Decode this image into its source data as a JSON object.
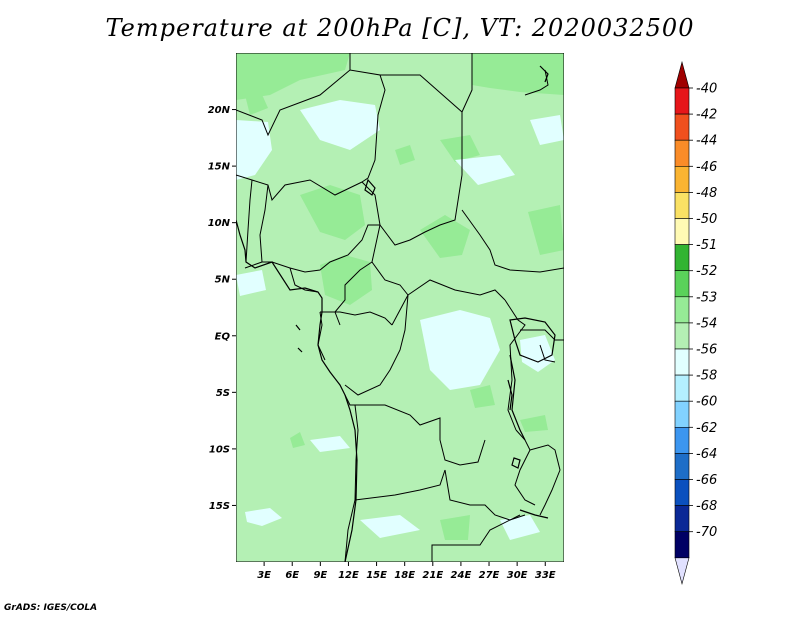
{
  "title": "Temperature at 200hPa [C], VT: 2020032500",
  "credit": "GrADS: IGES/COLA",
  "map": {
    "lat_ticks": [
      "20N",
      "15N",
      "10N",
      "5N",
      "EQ",
      "5S",
      "10S",
      "15S"
    ],
    "lon_ticks": [
      "3E",
      "6E",
      "9E",
      "12E",
      "15E",
      "18E",
      "21E",
      "24E",
      "27E",
      "30E",
      "33E"
    ],
    "lon_range": [
      0,
      35
    ],
    "lat_range": [
      -20,
      25
    ],
    "background_level": "-53"
  },
  "colorbar": {
    "levels": [
      "-40",
      "-42",
      "-44",
      "-46",
      "-48",
      "-50",
      "-51",
      "-52",
      "-53",
      "-54",
      "-56",
      "-58",
      "-60",
      "-62",
      "-64",
      "-66",
      "-68",
      "-70"
    ],
    "colors": [
      "#a00000",
      "#e6161a",
      "#f0501e",
      "#fa8c28",
      "#fab432",
      "#fae164",
      "#fffab4",
      "#32b432",
      "#5ad25a",
      "#96eb96",
      "#b4f0b4",
      "#e1ffff",
      "#b4f0ff",
      "#82d2ff",
      "#3c96f0",
      "#1e6ec8",
      "#0a50be",
      "#0a2896",
      "#000064",
      "#e1e1ff"
    ]
  }
}
